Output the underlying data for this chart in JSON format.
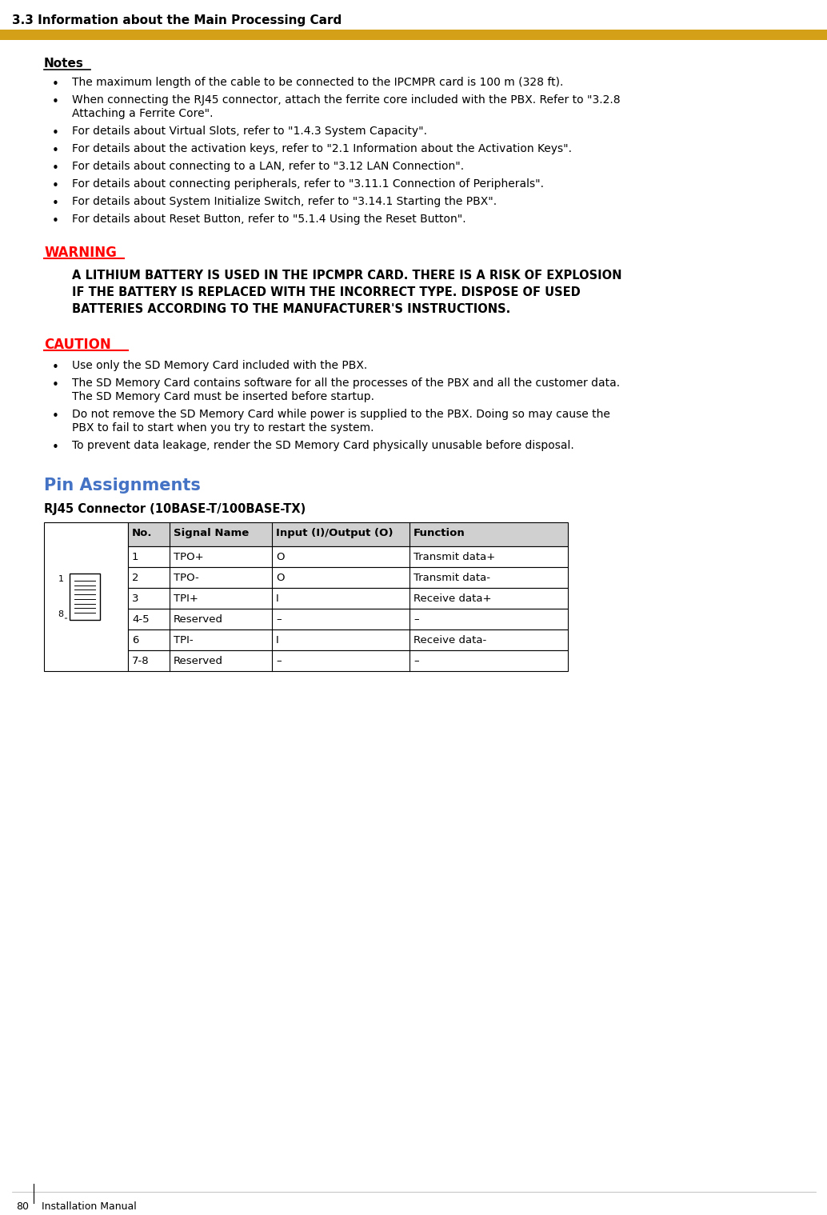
{
  "page_title": "3.3 Information about the Main Processing Card",
  "yellow_bar_color": "#D4A017",
  "notes_title": "Notes",
  "notes_bullets": [
    "The maximum length of the cable to be connected to the IPCMPR card is 100 m (328 ft).",
    "When connecting the RJ45 connector, attach the ferrite core included with the PBX. Refer to \"3.2.8\nAttaching a Ferrite Core\".",
    "For details about Virtual Slots, refer to \"1.4.3 System Capacity\".",
    "For details about the activation keys, refer to \"2.1 Information about the Activation Keys\".",
    "For details about connecting to a LAN, refer to \"3.12 LAN Connection\".",
    "For details about connecting peripherals, refer to \"3.11.1 Connection of Peripherals\".",
    "For details about System Initialize Switch, refer to \"3.14.1 Starting the PBX\".",
    "For details about Reset Button, refer to \"5.1.4 Using the Reset Button\"."
  ],
  "warning_title": "WARNING",
  "warning_color": "#FF0000",
  "warning_text": "A LITHIUM BATTERY IS USED IN THE IPCMPR CARD. THERE IS A RISK OF EXPLOSION\nIF THE BATTERY IS REPLACED WITH THE INCORRECT TYPE. DISPOSE OF USED\nBATTERIES ACCORDING TO THE MANUFACTURER'S INSTRUCTIONS.",
  "caution_title": "CAUTION",
  "caution_color": "#FF0000",
  "caution_bullets": [
    "Use only the SD Memory Card included with the PBX.",
    "The SD Memory Card contains software for all the processes of the PBX and all the customer data.\nThe SD Memory Card must be inserted before startup.",
    "Do not remove the SD Memory Card while power is supplied to the PBX. Doing so may cause the\nPBX to fail to start when you try to restart the system.",
    "To prevent data leakage, render the SD Memory Card physically unusable before disposal."
  ],
  "pin_assignments_title": "Pin Assignments",
  "pin_assignments_color": "#4472C4",
  "rj45_subtitle": "RJ45 Connector (10BASE-T/100BASE-TX)",
  "table_headers": [
    "No.",
    "Signal Name",
    "Input (I)/Output (O)",
    "Function"
  ],
  "table_rows": [
    [
      "1",
      "TPO+",
      "O",
      "Transmit data+"
    ],
    [
      "2",
      "TPO-",
      "O",
      "Transmit data-"
    ],
    [
      "3",
      "TPI+",
      "I",
      "Receive data+"
    ],
    [
      "4-5",
      "Reserved",
      "–",
      "–"
    ],
    [
      "6",
      "TPI-",
      "I",
      "Receive data-"
    ],
    [
      "7-8",
      "Reserved",
      "–",
      "–"
    ]
  ],
  "footer_page": "80",
  "footer_text": "Installation Manual",
  "bg_color": "#FFFFFF",
  "text_color": "#000000",
  "table_header_bg": "#D0D0D0",
  "table_border_color": "#000000"
}
